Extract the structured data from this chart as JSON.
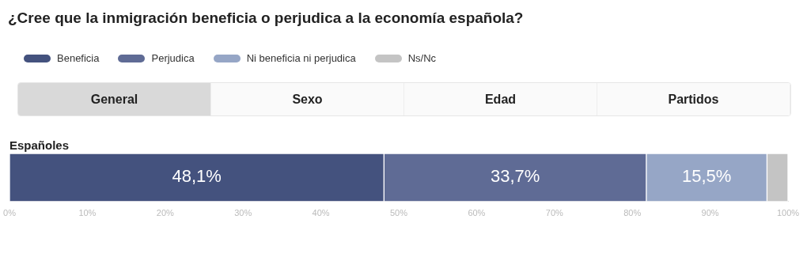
{
  "chart_data": {
    "type": "bar",
    "title": "¿Cree que la inmigración beneficia o perjudica a la economía española?",
    "orientation": "horizontal",
    "stacked": true,
    "categories": [
      "Españoles"
    ],
    "series": [
      {
        "name": "Beneficia",
        "color": "#44527e",
        "values": [
          48.1
        ],
        "value_labels": [
          "48,1%"
        ]
      },
      {
        "name": "Perjudica",
        "color": "#5f6b95",
        "values": [
          33.7
        ],
        "value_labels": [
          "33,7%"
        ]
      },
      {
        "name": "Ni beneficia ni perjudica",
        "color": "#96a6c6",
        "values": [
          15.5
        ],
        "value_labels": [
          "15,5%"
        ]
      },
      {
        "name": "Ns/Nc",
        "color": "#c4c4c4",
        "values": [
          2.7
        ],
        "value_labels": [
          null
        ]
      }
    ],
    "xlim": [
      0,
      100
    ],
    "xticks": [
      {
        "value": 0,
        "label": "0%"
      },
      {
        "value": 10,
        "label": "10%"
      },
      {
        "value": 20,
        "label": "20%"
      },
      {
        "value": 30,
        "label": "30%"
      },
      {
        "value": 40,
        "label": "40%"
      },
      {
        "value": 50,
        "label": "50%"
      },
      {
        "value": 60,
        "label": "60%"
      },
      {
        "value": 70,
        "label": "70%"
      },
      {
        "value": 80,
        "label": "80%"
      },
      {
        "value": 90,
        "label": "90%"
      },
      {
        "value": 100,
        "label": "100%"
      }
    ],
    "grid": false,
    "legend": "top left",
    "annotations": [
      "General",
      "Sexo",
      "Edad",
      "Partidos"
    ]
  }
}
